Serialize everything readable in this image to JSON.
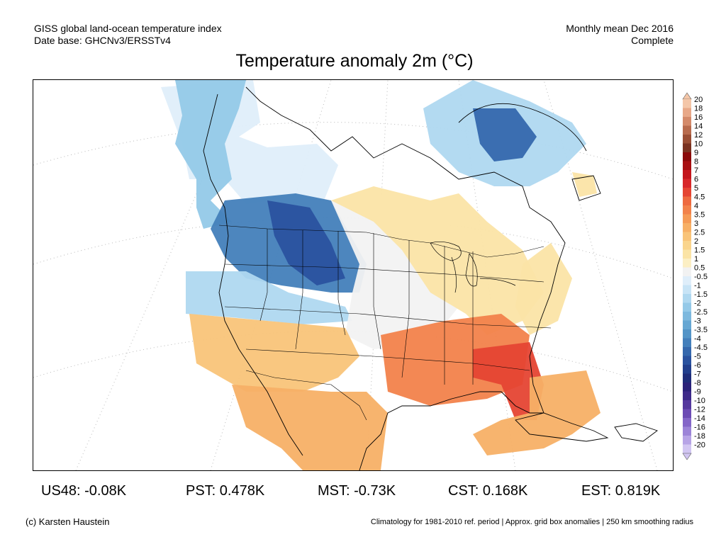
{
  "header": {
    "line1_left": "GISS global land-ocean temperature index",
    "line2_left": "Date base: GHCNv3/ERSSTv4",
    "line1_right": "Monthly mean Dec 2016",
    "line2_right": "Complete"
  },
  "title": "Temperature anomaly 2m (°C)",
  "colorbar": {
    "labels": [
      "20",
      "18",
      "16",
      "14",
      "12",
      "10",
      "9",
      "8",
      "7",
      "6",
      "5",
      "4.5",
      "4",
      "3.5",
      "3",
      "2.5",
      "2",
      "1.5",
      "1",
      "0.5",
      "-0.5",
      "-1",
      "-1.5",
      "-2",
      "-2.5",
      "-3",
      "-3.5",
      "-4",
      "-4.5",
      "-5",
      "-6",
      "-7",
      "-8",
      "-9",
      "-10",
      "-12",
      "-14",
      "-16",
      "-18",
      "-20"
    ],
    "colors": [
      "#f4c6a8",
      "#e8a888",
      "#d48a6a",
      "#b86b4d",
      "#9a4e34",
      "#7a3220",
      "#8b0a0a",
      "#a80f12",
      "#c4161c",
      "#d8282a",
      "#e54533",
      "#ee6a40",
      "#f2824b",
      "#f59b57",
      "#f7b066",
      "#f9c479",
      "#fad58d",
      "#fbe4a6",
      "#fcefc4",
      "#f2f2f2",
      "#dfeefa",
      "#c8e4f6",
      "#afd8f0",
      "#94c9e8",
      "#7db9de",
      "#66a7d3",
      "#5394c7",
      "#437fbb",
      "#3568ad",
      "#2a529f",
      "#223f8d",
      "#1f2d7a",
      "#2b227a",
      "#3e2a8a",
      "#55389e",
      "#6c4bb4",
      "#8466c8",
      "#9c84d8",
      "#b7a4e6",
      "#d2c6f2"
    ]
  },
  "map_regions": [
    {
      "name": "west-coast-canada",
      "value": -2.5,
      "color": "#94c9e8"
    },
    {
      "name": "northern-plains",
      "value": -4,
      "color": "#437fbb"
    },
    {
      "name": "canadian-arctic",
      "value": -0.5,
      "color": "#dfeefa"
    },
    {
      "name": "quebec-labrador",
      "value": -4,
      "color": "#3568ad"
    },
    {
      "name": "great-lakes",
      "value": 1,
      "color": "#fbe4a6"
    },
    {
      "name": "southwest-us",
      "value": 2,
      "color": "#f9c479"
    },
    {
      "name": "southeast-us",
      "value": 3,
      "color": "#f2824b"
    },
    {
      "name": "florida",
      "value": 4,
      "color": "#e54533"
    },
    {
      "name": "caribbean",
      "value": 2.5,
      "color": "#f7b066"
    },
    {
      "name": "mexico",
      "value": 2.5,
      "color": "#f7b066"
    },
    {
      "name": "central-plains",
      "value": 0.5,
      "color": "#f2f2f2"
    }
  ],
  "stats": [
    {
      "label": "US48: -0.08K"
    },
    {
      "label": "PST: 0.478K"
    },
    {
      "label": "MST: -0.73K"
    },
    {
      "label": "CST: 0.168K"
    },
    {
      "label": "EST: 0.819K"
    }
  ],
  "footer": {
    "left": "(c) Karsten Haustein",
    "right": "Climatology for 1981-2010 ref. period | Approx. grid box anomalies | 250 km smoothing radius"
  }
}
